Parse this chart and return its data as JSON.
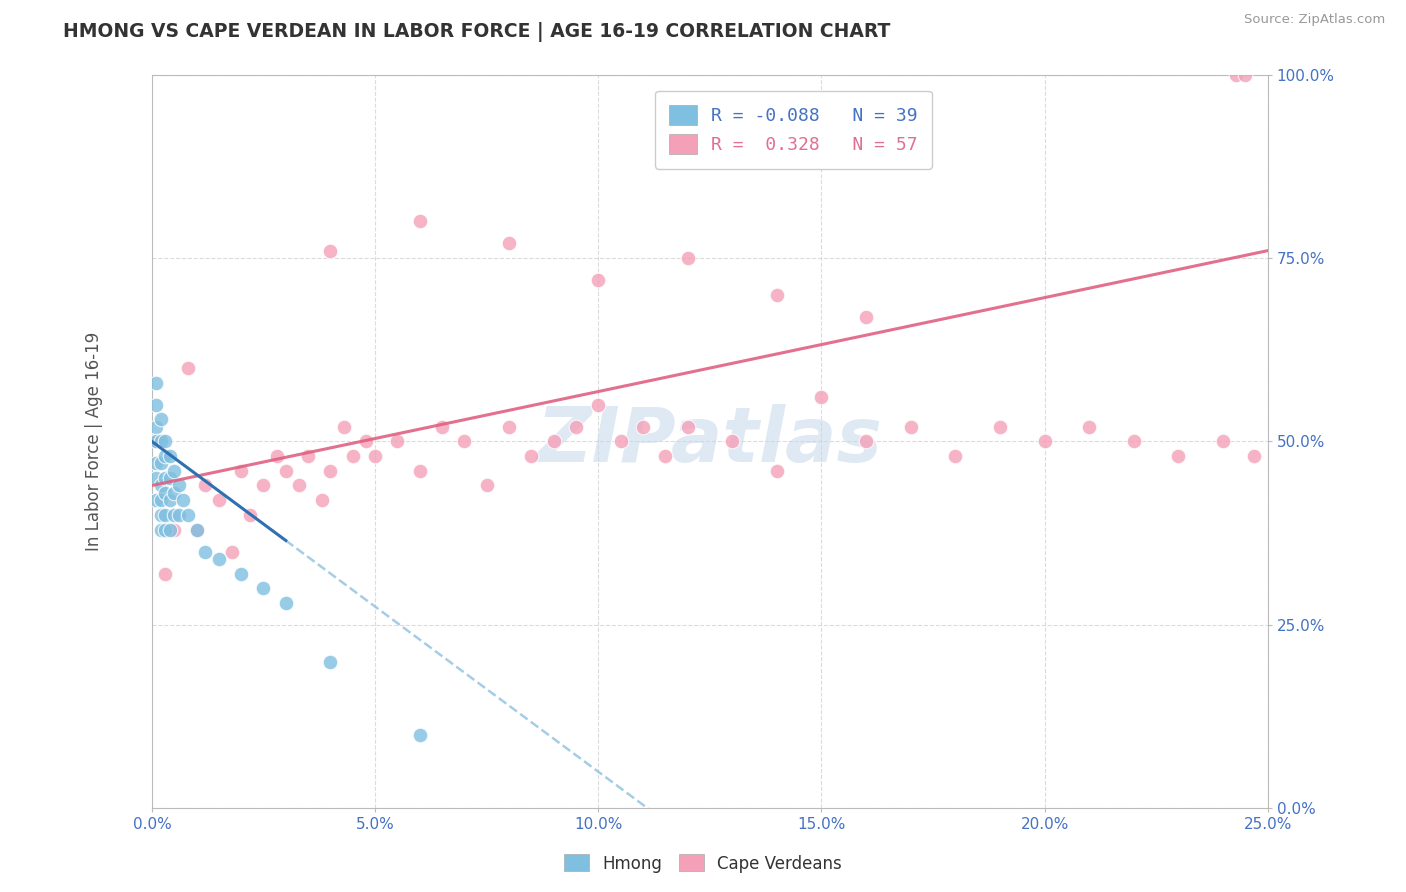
{
  "title": "HMONG VS CAPE VERDEAN IN LABOR FORCE | AGE 16-19 CORRELATION CHART",
  "source": "Source: ZipAtlas.com",
  "ylabel": "In Labor Force | Age 16-19",
  "xlim": [
    0.0,
    0.25
  ],
  "ylim": [
    0.0,
    1.0
  ],
  "xticks": [
    0.0,
    0.05,
    0.1,
    0.15,
    0.2,
    0.25
  ],
  "yticks": [
    0.0,
    0.25,
    0.5,
    0.75,
    1.0
  ],
  "xticklabels": [
    "0.0%",
    "5.0%",
    "10.0%",
    "15.0%",
    "20.0%",
    "25.0%"
  ],
  "yticklabels": [
    "0.0%",
    "25.0%",
    "50.0%",
    "75.0%",
    "100.0%"
  ],
  "R_hmong": -0.088,
  "N_hmong": 39,
  "R_cape": 0.328,
  "N_cape": 57,
  "hmong_color": "#7fbfdf",
  "cape_color": "#f4a0b8",
  "hmong_line_solid_color": "#3070b0",
  "hmong_line_dash_color": "#90c0e0",
  "cape_line_color": "#e06080",
  "background_color": "#ffffff",
  "grid_color": "#cccccc",
  "watermark": "ZIPatlas",
  "title_color": "#333333",
  "tick_color": "#4472c4",
  "legend_R_hmong_color": "#4472c4",
  "legend_R_cape_color": "#e07090",
  "hmong_x": [
    0.001,
    0.001,
    0.001,
    0.001,
    0.001,
    0.001,
    0.001,
    0.002,
    0.002,
    0.002,
    0.002,
    0.002,
    0.002,
    0.002,
    0.003,
    0.003,
    0.003,
    0.003,
    0.003,
    0.003,
    0.004,
    0.004,
    0.004,
    0.004,
    0.005,
    0.005,
    0.005,
    0.006,
    0.006,
    0.007,
    0.008,
    0.01,
    0.012,
    0.015,
    0.02,
    0.025,
    0.03,
    0.04,
    0.06
  ],
  "hmong_y": [
    0.58,
    0.55,
    0.52,
    0.5,
    0.47,
    0.45,
    0.42,
    0.53,
    0.5,
    0.47,
    0.44,
    0.42,
    0.4,
    0.38,
    0.5,
    0.48,
    0.45,
    0.43,
    0.4,
    0.38,
    0.48,
    0.45,
    0.42,
    0.38,
    0.46,
    0.43,
    0.4,
    0.44,
    0.4,
    0.42,
    0.4,
    0.38,
    0.35,
    0.34,
    0.32,
    0.3,
    0.28,
    0.2,
    0.1
  ],
  "cape_x": [
    0.001,
    0.003,
    0.005,
    0.008,
    0.01,
    0.012,
    0.015,
    0.018,
    0.02,
    0.022,
    0.025,
    0.028,
    0.03,
    0.033,
    0.035,
    0.038,
    0.04,
    0.043,
    0.045,
    0.048,
    0.05,
    0.055,
    0.06,
    0.065,
    0.07,
    0.075,
    0.08,
    0.085,
    0.09,
    0.095,
    0.1,
    0.105,
    0.11,
    0.115,
    0.12,
    0.13,
    0.14,
    0.15,
    0.16,
    0.17,
    0.18,
    0.19,
    0.2,
    0.21,
    0.22,
    0.23,
    0.24,
    0.243,
    0.245,
    0.247,
    0.04,
    0.06,
    0.08,
    0.1,
    0.12,
    0.14,
    0.16
  ],
  "cape_y": [
    0.5,
    0.32,
    0.38,
    0.6,
    0.38,
    0.44,
    0.42,
    0.35,
    0.46,
    0.4,
    0.44,
    0.48,
    0.46,
    0.44,
    0.48,
    0.42,
    0.46,
    0.52,
    0.48,
    0.5,
    0.48,
    0.5,
    0.46,
    0.52,
    0.5,
    0.44,
    0.52,
    0.48,
    0.5,
    0.52,
    0.55,
    0.5,
    0.52,
    0.48,
    0.52,
    0.5,
    0.46,
    0.56,
    0.5,
    0.52,
    0.48,
    0.52,
    0.5,
    0.52,
    0.5,
    0.48,
    0.5,
    1.0,
    1.0,
    0.48,
    0.76,
    0.8,
    0.77,
    0.72,
    0.75,
    0.7,
    0.67
  ]
}
